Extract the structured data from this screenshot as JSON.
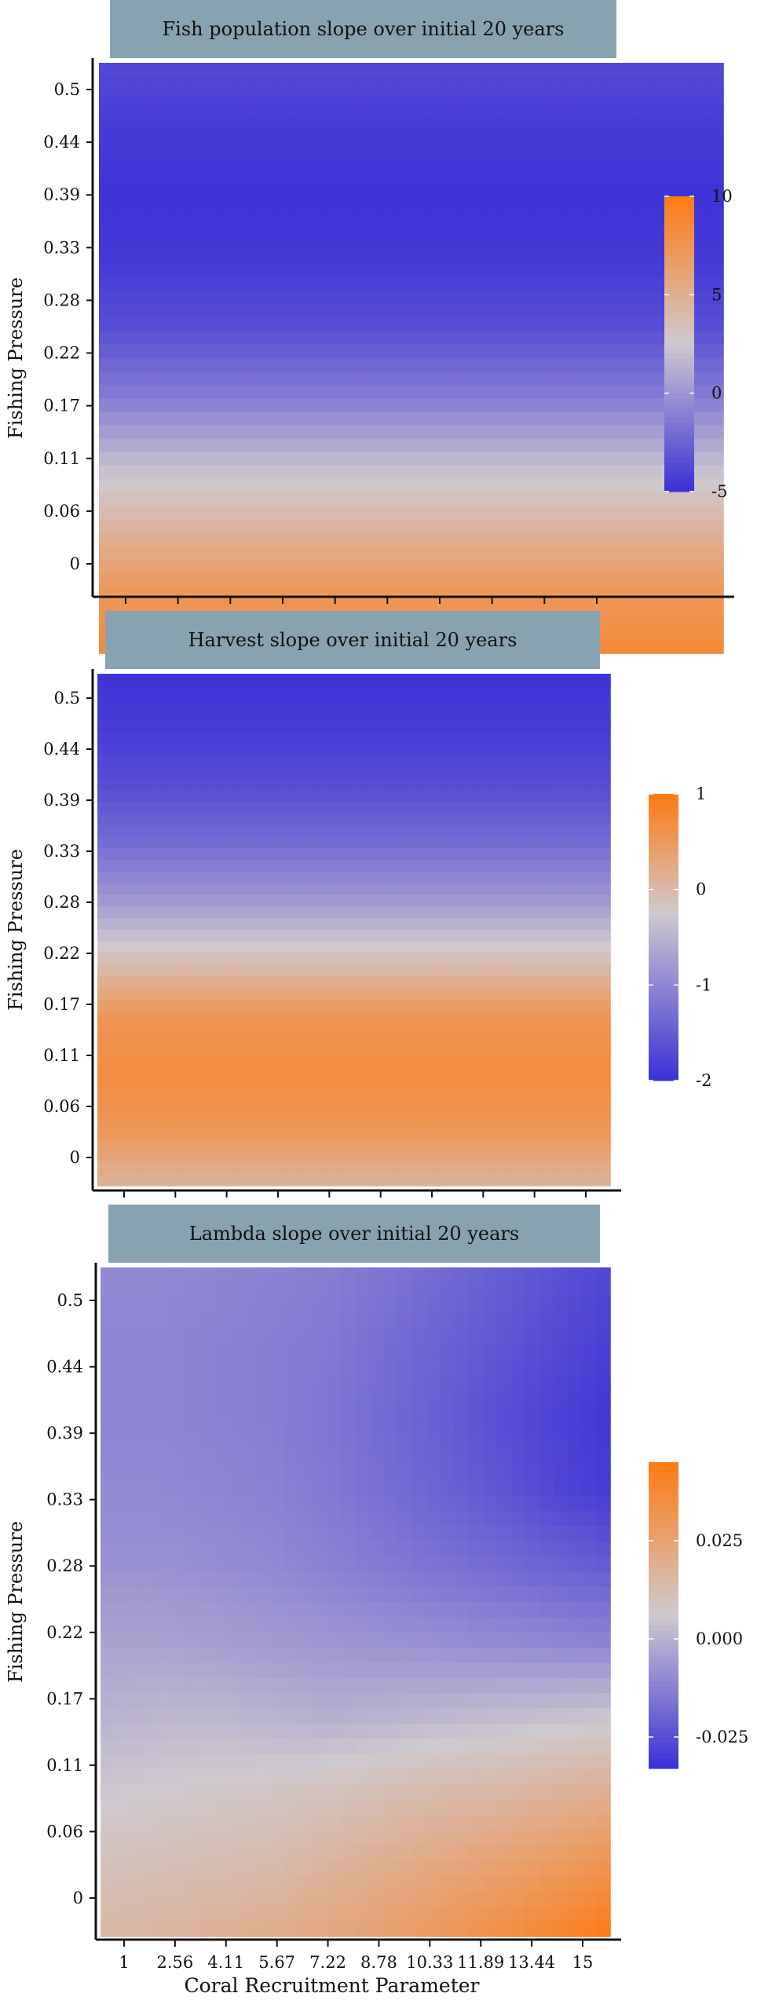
{
  "chart_data": [
    {
      "type": "heatmap",
      "title": "Fish population slope over initial 20 years",
      "ylabel": "Fishing Pressure",
      "xlabel": "",
      "x": [
        "1",
        "2.56",
        "4.11",
        "5.67",
        "7.22",
        "8.78",
        "10.33",
        "11.89",
        "13.44",
        "15"
      ],
      "x_ticklabels_shown": false,
      "y": [
        "0",
        "0.06",
        "0.11",
        "0.17",
        "0.22",
        "0.28",
        "0.33",
        "0.39",
        "0.44",
        "0.5"
      ],
      "values": [
        [
          8.5,
          8.5,
          8.5,
          8.5,
          8.5,
          8.5,
          8.5,
          8.5,
          8.5,
          8.5
        ],
        [
          7,
          7,
          7,
          7,
          7,
          7,
          7,
          7,
          7,
          7
        ],
        [
          4.2,
          4.2,
          4.2,
          4.2,
          4.2,
          4.2,
          4.2,
          4.2,
          4.2,
          4.2
        ],
        [
          1.5,
          1.5,
          1.5,
          1.5,
          1.5,
          1.5,
          1.5,
          1.5,
          1.5,
          1.5
        ],
        [
          -1.5,
          -1.5,
          -1.5,
          -1.5,
          -1.5,
          -1.5,
          -1.5,
          -1.5,
          -1.5,
          -1.5
        ],
        [
          -3.5,
          -3.5,
          -3.5,
          -3.5,
          -3.5,
          -3.5,
          -3.5,
          -3.5,
          -3.5,
          -3.5
        ],
        [
          -4.5,
          -4.5,
          -4.5,
          -4.5,
          -4.5,
          -4.5,
          -4.5,
          -4.5,
          -4.5,
          -4.5
        ],
        [
          -4.8,
          -4.8,
          -4.8,
          -4.8,
          -4.8,
          -4.8,
          -4.8,
          -4.8,
          -4.8,
          -4.8
        ],
        [
          -4.4,
          -4.4,
          -4.4,
          -4.4,
          -4.4,
          -4.4,
          -4.4,
          -4.4,
          -4.4,
          -4.4
        ],
        [
          -3.7,
          -3.7,
          -3.7,
          -3.7,
          -3.7,
          -3.7,
          -3.7,
          -3.7,
          -3.7,
          -3.7
        ]
      ],
      "legend": {
        "position": "right",
        "ticks": [
          "10",
          "5",
          "0",
          "-5"
        ],
        "min": -5,
        "max": 10
      },
      "colors": {
        "low": "#3a2fd6",
        "mid": "#cfc9cf",
        "high": "#ff7a12",
        "midpoint": 2.5
      }
    },
    {
      "type": "heatmap",
      "title": "Harvest slope over initial 20 years",
      "ylabel": "Fishing Pressure",
      "xlabel": "",
      "x": [
        "1",
        "2.56",
        "4.11",
        "5.67",
        "7.22",
        "8.78",
        "10.33",
        "11.89",
        "13.44",
        "15"
      ],
      "x_ticklabels_shown": false,
      "y": [
        "0",
        "0.06",
        "0.11",
        "0.17",
        "0.22",
        "0.28",
        "0.33",
        "0.39",
        "0.44",
        "0.5"
      ],
      "values": [
        [
          0.1,
          0.1,
          0.1,
          0.1,
          0.1,
          0.1,
          0.1,
          0.1,
          0.1,
          0.1
        ],
        [
          0.55,
          0.55,
          0.55,
          0.55,
          0.55,
          0.55,
          0.55,
          0.55,
          0.55,
          0.55
        ],
        [
          0.7,
          0.7,
          0.7,
          0.7,
          0.7,
          0.7,
          0.7,
          0.7,
          0.7,
          0.7
        ],
        [
          0.55,
          0.55,
          0.55,
          0.55,
          0.55,
          0.55,
          0.55,
          0.55,
          0.55,
          0.55
        ],
        [
          -0.1,
          -0.1,
          -0.1,
          -0.1,
          -0.1,
          -0.1,
          -0.1,
          -0.1,
          -0.1,
          -0.1
        ],
        [
          -0.8,
          -0.8,
          -0.8,
          -0.8,
          -0.8,
          -0.8,
          -0.8,
          -0.8,
          -0.8,
          -0.8
        ],
        [
          -1.3,
          -1.3,
          -1.3,
          -1.3,
          -1.3,
          -1.3,
          -1.3,
          -1.3,
          -1.3,
          -1.3
        ],
        [
          -1.65,
          -1.65,
          -1.65,
          -1.65,
          -1.65,
          -1.65,
          -1.65,
          -1.65,
          -1.65,
          -1.65
        ],
        [
          -1.85,
          -1.85,
          -1.85,
          -1.85,
          -1.85,
          -1.85,
          -1.85,
          -1.85,
          -1.85,
          -1.85
        ],
        [
          -1.95,
          -1.95,
          -1.95,
          -1.95,
          -1.95,
          -1.95,
          -1.95,
          -1.95,
          -1.95,
          -1.95
        ]
      ],
      "legend": {
        "position": "right",
        "ticks": [
          "1",
          "0",
          "-1",
          "-2"
        ],
        "min": -2,
        "max": 1
      },
      "colors": {
        "low": "#3a2fd6",
        "mid": "#cfc9cf",
        "high": "#ff7a12",
        "midpoint": -0.25
      }
    },
    {
      "type": "heatmap",
      "title": "Lambda slope over initial 20 years",
      "ylabel": "Fishing Pressure",
      "xlabel": "Coral Recruitment Parameter",
      "x": [
        "1",
        "2.56",
        "4.11",
        "5.67",
        "7.22",
        "8.78",
        "10.33",
        "11.89",
        "13.44",
        "15"
      ],
      "x_ticklabels_shown": true,
      "y": [
        "0",
        "0.06",
        "0.11",
        "0.17",
        "0.22",
        "0.28",
        "0.33",
        "0.39",
        "0.44",
        "0.5"
      ],
      "values": [
        [
          0.015,
          0.016,
          0.018,
          0.02,
          0.023,
          0.026,
          0.03,
          0.034,
          0.039,
          0.045
        ],
        [
          0.01,
          0.011,
          0.012,
          0.013,
          0.016,
          0.019,
          0.022,
          0.025,
          0.028,
          0.032
        ],
        [
          0.005,
          0.006,
          0.007,
          0.008,
          0.009,
          0.011,
          0.013,
          0.014,
          0.016,
          0.018
        ],
        [
          0.0,
          0.001,
          0.001,
          0.0,
          -0.001,
          0.0,
          0.001,
          0.002,
          0.003,
          0.004
        ],
        [
          -0.004,
          -0.004,
          -0.005,
          -0.006,
          -0.007,
          -0.008,
          -0.009,
          -0.01,
          -0.011,
          -0.012
        ],
        [
          -0.008,
          -0.008,
          -0.009,
          -0.01,
          -0.012,
          -0.014,
          -0.016,
          -0.018,
          -0.02,
          -0.022
        ],
        [
          -0.01,
          -0.01,
          -0.011,
          -0.012,
          -0.014,
          -0.017,
          -0.02,
          -0.023,
          -0.027,
          -0.03
        ],
        [
          -0.011,
          -0.011,
          -0.012,
          -0.013,
          -0.015,
          -0.018,
          -0.021,
          -0.025,
          -0.028,
          -0.031
        ],
        [
          -0.011,
          -0.011,
          -0.012,
          -0.013,
          -0.014,
          -0.017,
          -0.02,
          -0.023,
          -0.026,
          -0.029
        ],
        [
          -0.01,
          -0.01,
          -0.011,
          -0.012,
          -0.013,
          -0.015,
          -0.018,
          -0.021,
          -0.024,
          -0.027
        ]
      ],
      "legend": {
        "position": "right",
        "ticks": [
          "0.025",
          "0.000",
          "-0.025"
        ],
        "min": -0.033,
        "max": 0.045
      },
      "colors": {
        "low": "#3a2fd6",
        "mid": "#cfc9cf",
        "high": "#ff7a12",
        "midpoint": 0.006
      }
    }
  ]
}
